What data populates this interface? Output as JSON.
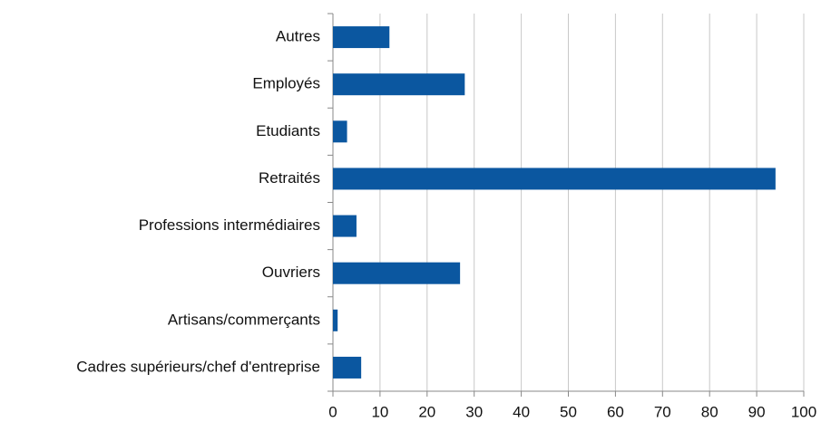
{
  "chart_data": {
    "type": "bar",
    "orientation": "horizontal",
    "categories": [
      "Autres",
      "Employés",
      "Etudiants",
      "Retraités",
      "Professions intermédiaires",
      "Ouvriers",
      "Artisans/commerçants",
      "Cadres supérieurs/chef d'entreprise"
    ],
    "values": [
      12,
      28,
      3,
      94,
      5,
      27,
      1,
      6
    ],
    "color": "#0b57a0",
    "xlim": [
      0,
      100
    ],
    "xticks": [
      0,
      10,
      20,
      30,
      40,
      50,
      60,
      70,
      80,
      90,
      100
    ],
    "grid": true
  }
}
